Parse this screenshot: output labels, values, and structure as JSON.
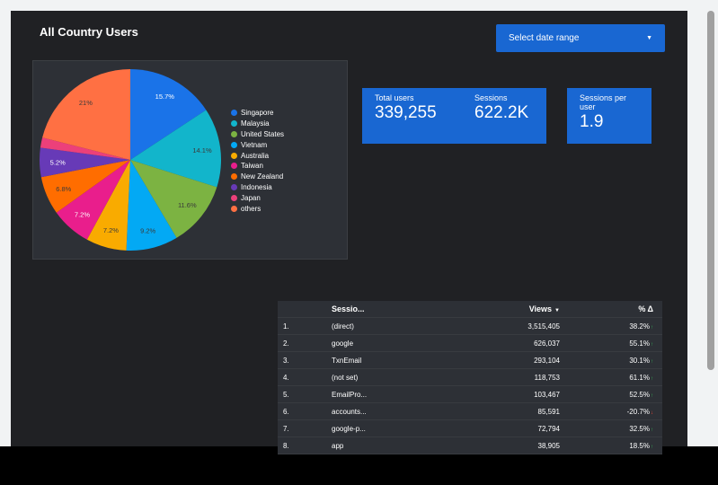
{
  "header": {
    "title": "All Country Users"
  },
  "date_range": {
    "label": "Select date range",
    "caret_icon": "caret-down-icon"
  },
  "kpis": [
    {
      "label": "Total users",
      "value": "339,255"
    },
    {
      "label": "Sessions",
      "value": "622.2K"
    },
    {
      "label": "Sessions per user",
      "value": "1.9"
    }
  ],
  "pie": {
    "slices": [
      {
        "name": "Singapore",
        "percent": 15.7,
        "label": "15.7%",
        "color": "#1a73e8"
      },
      {
        "name": "Malaysia",
        "percent": 14.1,
        "label": "14.1%",
        "color": "#12b5cb"
      },
      {
        "name": "United States",
        "percent": 11.6,
        "label": "11.6%",
        "color": "#7cb342"
      },
      {
        "name": "Vietnam",
        "percent": 9.2,
        "label": "9.2%",
        "color": "#03a9f4"
      },
      {
        "name": "Australia",
        "percent": 7.2,
        "label": "7.2%",
        "color": "#f9ab00"
      },
      {
        "name": "Taiwan",
        "percent": 7.2,
        "label": "7.2%",
        "color": "#e91e8c"
      },
      {
        "name": "New Zealand",
        "percent": 6.8,
        "label": "6.8%",
        "color": "#ff6d00"
      },
      {
        "name": "Indonesia",
        "percent": 5.2,
        "label": "5.2%",
        "color": "#673ab7"
      },
      {
        "name": "Japan",
        "percent": 1.8,
        "label": "",
        "color": "#ec407a"
      },
      {
        "name": "others",
        "percent": 21.0,
        "label": "21%",
        "color": "#ff7043"
      }
    ]
  },
  "table": {
    "headers": {
      "source": "Sessio...",
      "views": "Views",
      "pct": "% Δ"
    },
    "rows": [
      {
        "num": "1.",
        "source": "(direct)",
        "views": "3,515,405",
        "pct": "38.2%",
        "trend": "up"
      },
      {
        "num": "2.",
        "source": "google",
        "views": "626,037",
        "pct": "55.1%",
        "trend": "up"
      },
      {
        "num": "3.",
        "source": "TxnEmail",
        "views": "293,104",
        "pct": "30.1%",
        "trend": "up"
      },
      {
        "num": "4.",
        "source": "(not set)",
        "views": "118,753",
        "pct": "61.1%",
        "trend": "up"
      },
      {
        "num": "5.",
        "source": "EmailPro...",
        "views": "103,467",
        "pct": "52.5%",
        "trend": "up"
      },
      {
        "num": "6.",
        "source": "accounts...",
        "views": "85,591",
        "pct": "-20.7%",
        "trend": "down"
      },
      {
        "num": "7.",
        "source": "google-p...",
        "views": "72,794",
        "pct": "32.5%",
        "trend": "up"
      },
      {
        "num": "8.",
        "source": "app",
        "views": "38,905",
        "pct": "18.5%",
        "trend": "up"
      }
    ]
  }
}
